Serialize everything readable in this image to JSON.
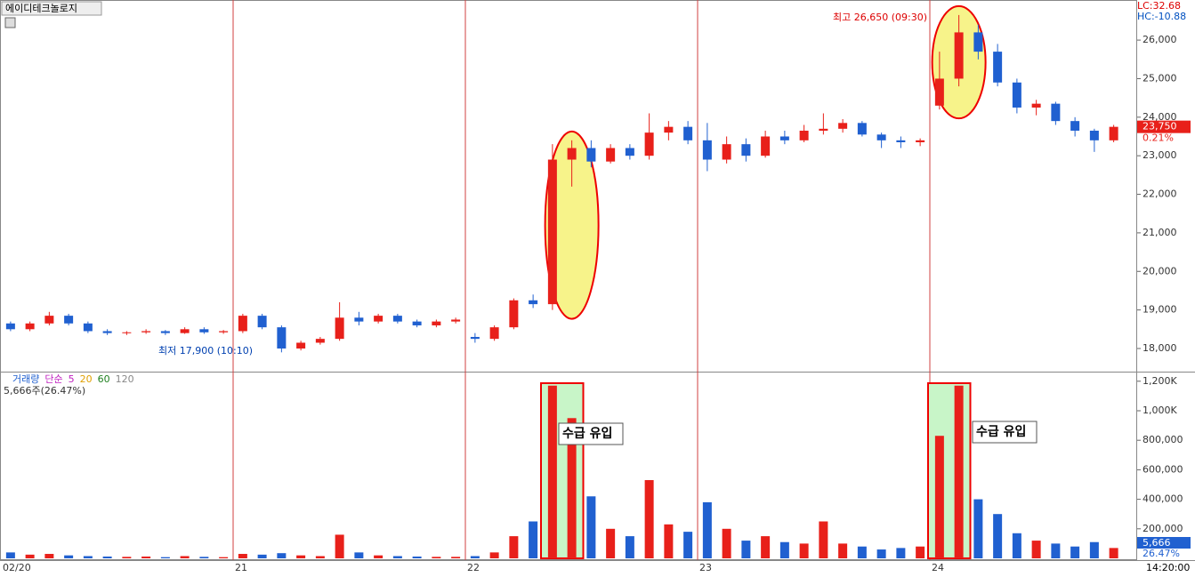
{
  "chart_data": {
    "type": "candlestick",
    "title": "에이디테크놀로지",
    "lc_label": "LC:32.68",
    "hc_label": "HC:-10.88",
    "high_note": "최고 26,650 (09:30)",
    "low_note": "최저 17,900 (10:10)",
    "last_price_label": "23,750",
    "change_label": "0.21%",
    "time_label": "14:20:00",
    "annotations": [
      "수급 유입",
      "수급 유입"
    ],
    "volume_legend": [
      "거래량",
      "단순",
      "5",
      "20",
      "60",
      "120"
    ],
    "volume_info": "5,666주(26.47%)",
    "last_volume_label": "5,666",
    "last_volume_ratio": "26.47%",
    "up_color": "#e8201a",
    "down_color": "#2060d0",
    "categories": [
      "02/20",
      null,
      null,
      null,
      null,
      null,
      null,
      null,
      null,
      null,
      null,
      null,
      "21",
      null,
      null,
      null,
      null,
      null,
      null,
      null,
      null,
      null,
      null,
      null,
      "22",
      null,
      null,
      null,
      null,
      null,
      null,
      null,
      null,
      null,
      null,
      null,
      "23",
      null,
      null,
      null,
      null,
      null,
      null,
      null,
      null,
      null,
      null,
      null,
      "24",
      null,
      null,
      null,
      null,
      null,
      null,
      null,
      null,
      null
    ],
    "open": [
      18650,
      18500,
      18650,
      18850,
      18650,
      18450,
      18400,
      18420,
      18450,
      18400,
      18500,
      18420,
      18450,
      18850,
      18550,
      18000,
      18150,
      18250,
      18800,
      18700,
      18850,
      18700,
      18600,
      18700,
      18300,
      18250,
      18550,
      19250,
      19150,
      22900,
      23200,
      22850,
      23200,
      23000,
      23600,
      23750,
      23400,
      22900,
      23300,
      23000,
      23500,
      23400,
      23650,
      23700,
      23850,
      23550,
      23400,
      23350,
      24300,
      25000,
      26200,
      25700,
      24900,
      24250,
      24350,
      23900,
      23650,
      23400
    ],
    "high": [
      18700,
      18700,
      18950,
      18900,
      18700,
      18500,
      18450,
      18500,
      18480,
      18550,
      18550,
      18480,
      18900,
      18900,
      18600,
      18200,
      18300,
      19200,
      18950,
      18900,
      18900,
      18750,
      18750,
      18800,
      18400,
      18600,
      19300,
      19400,
      23300,
      23400,
      23400,
      23300,
      23300,
      24100,
      23900,
      23900,
      23850,
      23500,
      23450,
      23650,
      23650,
      23800,
      24100,
      23950,
      23900,
      23600,
      23500,
      23450,
      25700,
      26650,
      26400,
      25900,
      25000,
      24450,
      24400,
      24000,
      23700,
      23800
    ],
    "low": [
      18450,
      18450,
      18600,
      18600,
      18400,
      18350,
      18350,
      18380,
      18350,
      18380,
      18380,
      18380,
      18400,
      18500,
      17900,
      17950,
      18100,
      18200,
      18600,
      18650,
      18650,
      18550,
      18550,
      18650,
      18150,
      18200,
      18500,
      19050,
      19000,
      22200,
      22700,
      22800,
      22900,
      22900,
      23400,
      23300,
      22600,
      22800,
      22850,
      22950,
      23300,
      23350,
      23550,
      23600,
      23500,
      23200,
      23200,
      23250,
      24200,
      24800,
      25500,
      24800,
      24100,
      24050,
      23800,
      23500,
      23100,
      23350
    ],
    "close": [
      18500,
      18650,
      18850,
      18650,
      18450,
      18400,
      18420,
      18450,
      18400,
      18500,
      18420,
      18450,
      18850,
      18550,
      18000,
      18150,
      18250,
      18800,
      18700,
      18850,
      18700,
      18600,
      18700,
      18750,
      18250,
      18550,
      19250,
      19150,
      22900,
      23200,
      22850,
      23200,
      23000,
      23600,
      23750,
      23400,
      22900,
      23300,
      23000,
      23500,
      23400,
      23650,
      23700,
      23850,
      23550,
      23400,
      23350,
      23400,
      25000,
      26200,
      25700,
      24900,
      24250,
      24350,
      23900,
      23650,
      23400,
      23750
    ],
    "volume": [
      40000,
      25000,
      30000,
      20000,
      15000,
      12000,
      10000,
      12000,
      8000,
      15000,
      10000,
      8000,
      30000,
      25000,
      35000,
      20000,
      15000,
      160000,
      40000,
      20000,
      15000,
      12000,
      10000,
      10000,
      15000,
      40000,
      150000,
      250000,
      1170000,
      950000,
      420000,
      200000,
      150000,
      530000,
      230000,
      180000,
      380000,
      200000,
      120000,
      150000,
      110000,
      100000,
      250000,
      100000,
      80000,
      60000,
      70000,
      80000,
      830000,
      1170000,
      400000,
      300000,
      170000,
      120000,
      100000,
      80000,
      110000,
      70000
    ],
    "ylim": [
      17400,
      27040
    ],
    "yticks": [
      {
        "value": 18000,
        "label": "18,000"
      },
      {
        "value": 19000,
        "label": "19,000"
      },
      {
        "value": 20000,
        "label": "20,000"
      },
      {
        "value": 21000,
        "label": "21,000"
      },
      {
        "value": 22000,
        "label": "22,000"
      },
      {
        "value": 23000,
        "label": "23,000"
      },
      {
        "value": 24000,
        "label": "24,000"
      },
      {
        "value": 25000,
        "label": "25,000"
      },
      {
        "value": 26000,
        "label": "26,000"
      }
    ],
    "y2lim": [
      0,
      1265000
    ],
    "y2ticks": [
      {
        "value": 200000,
        "label": "200,000"
      },
      {
        "value": 400000,
        "label": "400,000"
      },
      {
        "value": 600000,
        "label": "600,000"
      },
      {
        "value": 800000,
        "label": "800,000"
      },
      {
        "value": 1000000,
        "label": "1,000K"
      },
      {
        "value": 1200000,
        "label": "1,200K"
      }
    ]
  }
}
